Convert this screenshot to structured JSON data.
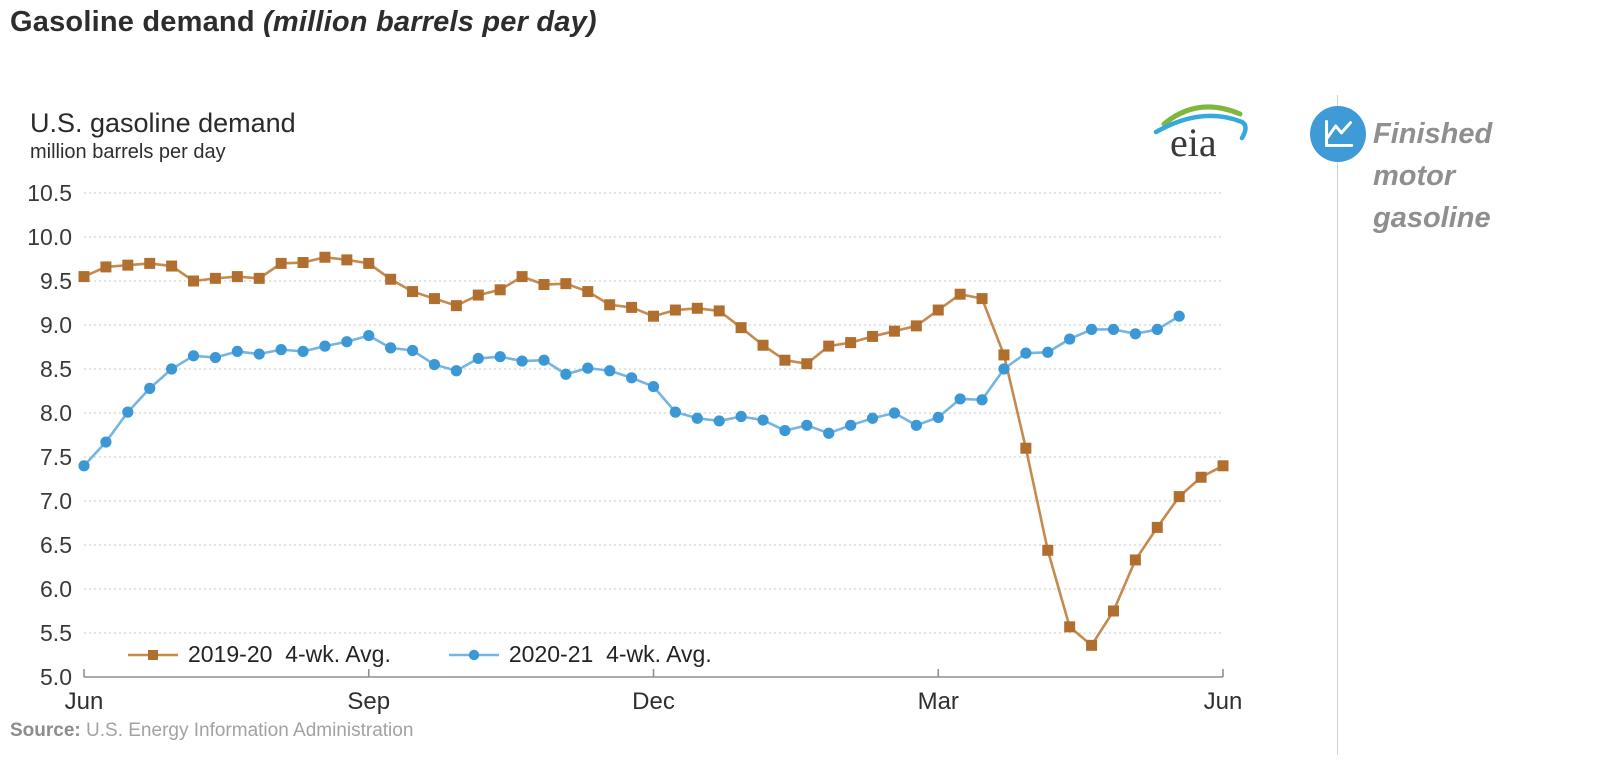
{
  "page": {
    "title_main": "Gasoline demand ",
    "title_unit": "(million barrels per day)"
  },
  "chart": {
    "title": "U.S. gasoline demand",
    "subtitle": "million barrels per day",
    "logo_text": "eia",
    "source_label": "Source:",
    "source_text": " U.S. Energy Information Administration"
  },
  "side_panel": {
    "label": "Finished motor gasoline",
    "icon": "line-chart-icon",
    "icon_bg_color": "#3e9bd5"
  },
  "chart_data": {
    "type": "line",
    "title": "U.S. gasoline demand",
    "ylabel": "million barrels per day",
    "ylim": [
      5.0,
      10.5
    ],
    "y_tick_step": 0.5,
    "y_tick_labels": [
      "10.5",
      "10.0",
      "9.5",
      "9.0",
      "8.5",
      "8.0",
      "7.5",
      "7.0",
      "6.5",
      "6.0",
      "5.5",
      "5.0"
    ],
    "x_tick_labels": [
      "Jun",
      "Sep",
      "Dec",
      "Mar",
      "Jun"
    ],
    "x_tick_weeks": [
      0,
      13,
      26,
      39,
      52
    ],
    "x_total_weeks": 52,
    "grid": "dotted-horizontal",
    "legend_position": "bottom-left-inside",
    "series": [
      {
        "name": "2019-20  4-wk. Avg.",
        "marker": "square",
        "color": "#b16f2f",
        "line_color": "#c68a4e",
        "start_week": 0,
        "values": [
          9.55,
          9.66,
          9.68,
          9.7,
          9.67,
          9.5,
          9.53,
          9.55,
          9.53,
          9.7,
          9.71,
          9.77,
          9.74,
          9.7,
          9.52,
          9.38,
          9.3,
          9.22,
          9.34,
          9.4,
          9.55,
          9.46,
          9.47,
          9.38,
          9.23,
          9.2,
          9.1,
          9.17,
          9.19,
          9.16,
          8.97,
          8.77,
          8.6,
          8.56,
          8.76,
          8.8,
          8.87,
          8.93,
          8.99,
          9.17,
          9.35,
          9.3,
          8.66,
          7.6,
          6.44,
          5.57,
          5.36,
          5.75,
          6.33,
          6.7,
          7.05,
          7.27,
          7.4
        ]
      },
      {
        "name": "2020-21  4-wk. Avg.",
        "marker": "circle",
        "color": "#3b98d4",
        "line_color": "#74b5e2",
        "start_week": 0,
        "values": [
          7.4,
          7.67,
          8.01,
          8.28,
          8.5,
          8.65,
          8.63,
          8.7,
          8.67,
          8.72,
          8.7,
          8.76,
          8.81,
          8.88,
          8.74,
          8.71,
          8.55,
          8.48,
          8.62,
          8.64,
          8.59,
          8.6,
          8.44,
          8.51,
          8.48,
          8.4,
          8.3,
          8.01,
          7.94,
          7.91,
          7.96,
          7.92,
          7.8,
          7.86,
          7.77,
          7.86,
          7.94,
          8.0,
          7.86,
          7.95,
          8.16,
          8.15,
          8.5,
          8.68,
          8.69,
          8.84,
          8.95,
          8.95,
          8.9,
          8.95,
          9.1
        ]
      }
    ],
    "axis_color": "#8f8f8f",
    "grid_color": "#c9c9c9"
  }
}
